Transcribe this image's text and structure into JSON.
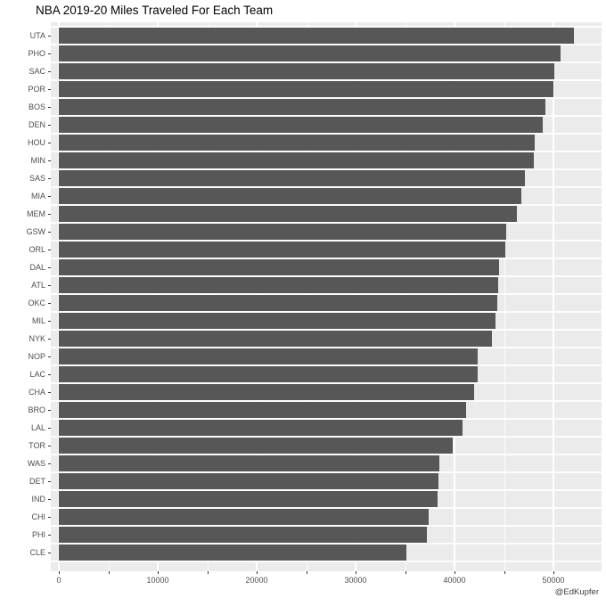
{
  "title": "NBA 2019-20 Miles Traveled For Each Team",
  "caption": "@EdKupfer",
  "colors": {
    "panel_bg": "#EBEBEB",
    "bar": "#575757",
    "grid": "#FFFFFF",
    "axis_text": "#4D4D4D",
    "tick": "#333333",
    "title_text": "#000000",
    "caption_text": "#404040",
    "plot_bg": "#FFFFFF"
  },
  "chart_data": {
    "type": "bar",
    "orientation": "horizontal",
    "title": "NBA 2019-20 Miles Traveled For Each Team",
    "xlabel": "",
    "ylabel": "",
    "categories": [
      "UTA",
      "PHO",
      "SAC",
      "POR",
      "BOS",
      "DEN",
      "HOU",
      "MIN",
      "SAS",
      "MIA",
      "MEM",
      "GSW",
      "ORL",
      "DAL",
      "ATL",
      "OKC",
      "MIL",
      "NYK",
      "NOP",
      "LAC",
      "CHA",
      "BRO",
      "LAL",
      "TOR",
      "WAS",
      "DET",
      "IND",
      "CHI",
      "PHI",
      "CLE"
    ],
    "values": [
      52100,
      50700,
      50100,
      50000,
      49200,
      48900,
      48100,
      48000,
      47100,
      46800,
      46300,
      45200,
      45100,
      44500,
      44450,
      44300,
      44150,
      43800,
      42350,
      42300,
      42000,
      41200,
      40800,
      39800,
      38450,
      38350,
      38300,
      37350,
      37250,
      35100
    ],
    "x_major_ticks": [
      0,
      10000,
      20000,
      30000,
      40000,
      50000
    ],
    "x_major_tick_labels": [
      "0",
      "10000",
      "20000",
      "30000",
      "40000",
      "50000"
    ],
    "x_minor_ticks": [
      5000,
      15000,
      25000,
      35000,
      45000
    ],
    "xlim": [
      0,
      54900
    ],
    "grid": true,
    "legend": false,
    "sorted": "descending"
  }
}
